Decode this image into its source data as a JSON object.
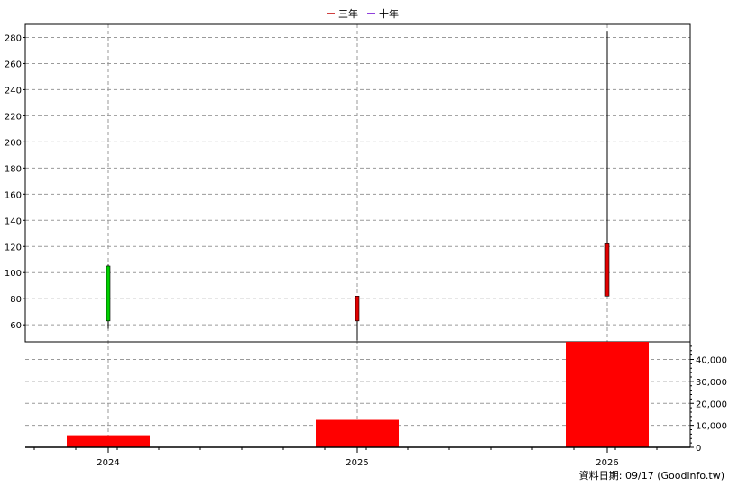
{
  "legend": [
    {
      "label": "三年",
      "color": "#c00000"
    },
    {
      "label": "十年",
      "color": "#6a00d0"
    }
  ],
  "footer": {
    "text": "資料日期: 09/17  (Goodinfo.tw)"
  },
  "chart_data": [
    {
      "type": "candlestick",
      "title": "",
      "categories": [
        "2024",
        "2025",
        "2026"
      ],
      "ylim": [
        47,
        290
      ],
      "y_ticks": [
        60,
        80,
        100,
        120,
        140,
        160,
        180,
        200,
        220,
        240,
        260,
        280
      ],
      "grid": true,
      "candles": [
        {
          "x": "2024",
          "open": 63,
          "close": 105,
          "high": 106,
          "low": 57,
          "color": "#00d000"
        },
        {
          "x": "2025",
          "open": 82,
          "close": 63,
          "high": 82,
          "low": 48,
          "color": "#e00000"
        },
        {
          "x": "2026",
          "open": 122,
          "close": 82,
          "high": 285,
          "low": 82,
          "color": "#e00000"
        }
      ]
    },
    {
      "type": "bar",
      "categories": [
        "2024",
        "2025",
        "2026"
      ],
      "values": [
        5500,
        12500,
        48000
      ],
      "color": "#ff0000",
      "ylim": [
        0,
        48000
      ],
      "y_ticks": [
        0,
        10000,
        20000,
        30000,
        40000
      ],
      "y_tick_labels": [
        "0",
        "10,000",
        "20,000",
        "30,000",
        "40,000"
      ],
      "axis_side": "right",
      "grid": true
    }
  ]
}
